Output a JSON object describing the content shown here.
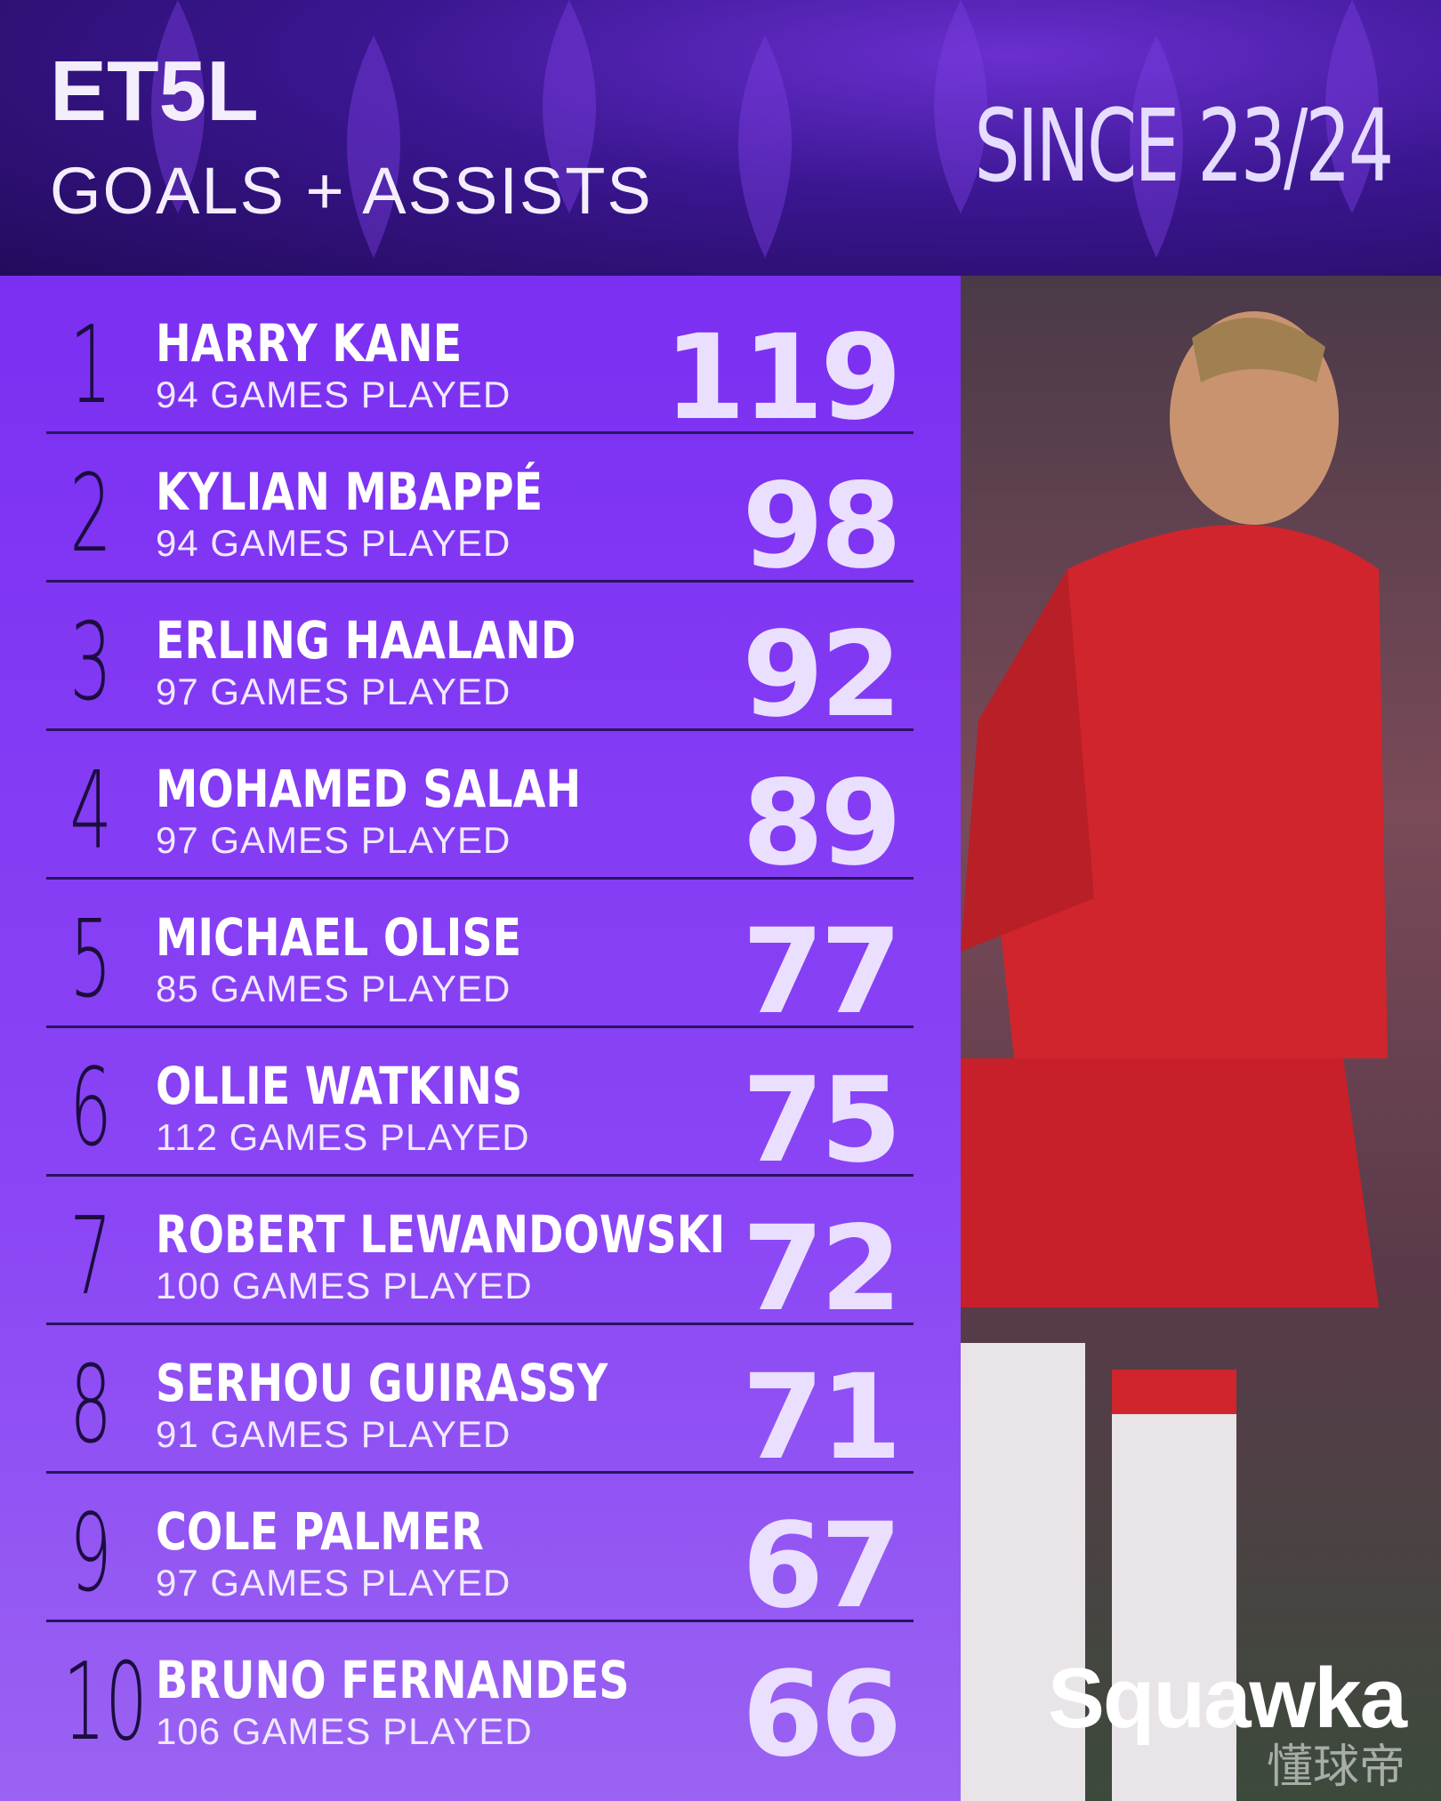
{
  "header": {
    "title": "ET5L",
    "subtitle": "GOALS + ASSISTS",
    "period": "SINCE 23/24"
  },
  "rows": [
    {
      "rank": 1,
      "name": "HARRY KANE",
      "games": "94 GAMES PLAYED",
      "value": 119
    },
    {
      "rank": 2,
      "name": "KYLIAN MBAPPÉ",
      "games": "94 GAMES PLAYED",
      "value": 98
    },
    {
      "rank": 3,
      "name": "ERLING HAALAND",
      "games": "97 GAMES PLAYED",
      "value": 92
    },
    {
      "rank": 4,
      "name": "MOHAMED SALAH",
      "games": "97 GAMES PLAYED",
      "value": 89
    },
    {
      "rank": 5,
      "name": "MICHAEL OLISE",
      "games": "85 GAMES PLAYED",
      "value": 77
    },
    {
      "rank": 6,
      "name": "OLLIE WATKINS",
      "games": "112 GAMES PLAYED",
      "value": 75
    },
    {
      "rank": 7,
      "name": "ROBERT LEWANDOWSKI",
      "games": "100 GAMES PLAYED",
      "value": 72
    },
    {
      "rank": 8,
      "name": "SERHOU GUIRASSY",
      "games": "91 GAMES PLAYED",
      "value": 71
    },
    {
      "rank": 9,
      "name": "COLE PALMER",
      "games": "97 GAMES PLAYED",
      "value": 67
    },
    {
      "rank": 10,
      "name": "BRUNO FERNANDES",
      "games": "106 GAMES PLAYED",
      "value": 66
    }
  ],
  "brand": "Squawka",
  "watermark": "懂球帝"
}
